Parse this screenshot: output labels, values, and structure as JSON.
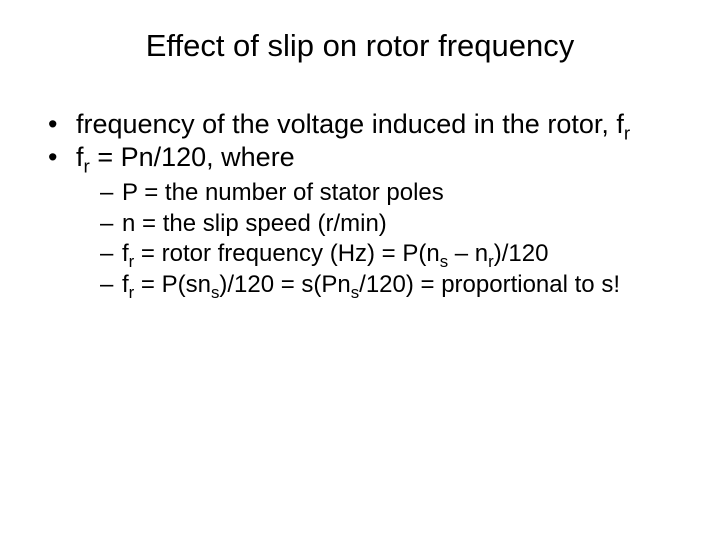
{
  "title": "Effect of slip on rotor frequency",
  "bullets": [
    {
      "fragments": [
        "frequency of the voltage induced in the rotor, f",
        "r"
      ],
      "types": [
        "text",
        "sub"
      ]
    },
    {
      "fragments": [
        "f",
        "r",
        "  = Pn/120, where"
      ],
      "types": [
        "text",
        "sub",
        "text"
      ]
    }
  ],
  "subbullets": [
    {
      "fragments": [
        "P = the number of stator poles"
      ],
      "types": [
        "text"
      ]
    },
    {
      "fragments": [
        "n = the slip speed (r/min)"
      ],
      "types": [
        "text"
      ]
    },
    {
      "fragments": [
        "f",
        "r",
        " = rotor frequency (Hz) = P(n",
        "s",
        " – n",
        "r",
        ")/120"
      ],
      "types": [
        "text",
        "sub",
        "text",
        "sub",
        "text",
        "sub",
        "text"
      ]
    },
    {
      "fragments": [
        "f",
        "r",
        " = P(sn",
        "s",
        ")/120 = s(Pn",
        "s",
        "/120) = proportional to s!"
      ],
      "types": [
        "text",
        "sub",
        "text",
        "sub",
        "text",
        "sub",
        "text"
      ]
    }
  ]
}
